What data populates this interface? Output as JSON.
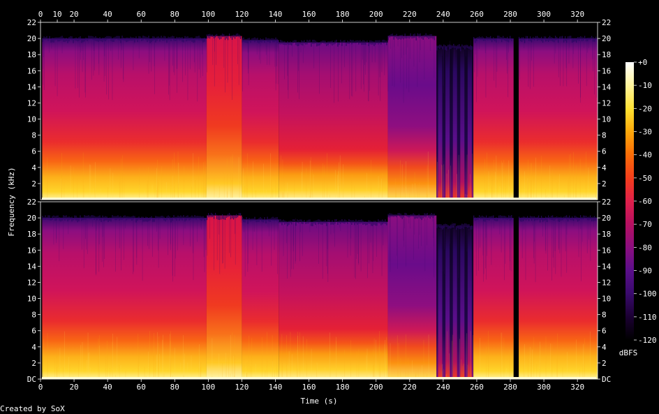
{
  "chart_data": {
    "type": "heatmap",
    "subtype": "spectrogram",
    "channels": 2,
    "xlabel": "Time (s)",
    "ylabel": "Frequency (kHz)",
    "colorbar_label": "dBFS",
    "footer": "Created by SoX",
    "xlim": [
      0,
      332
    ],
    "ylim_khz": [
      0,
      22
    ],
    "x_ticks": [
      "0",
      "20",
      "40",
      "60",
      "80",
      "100",
      "120",
      "140",
      "160",
      "180",
      "200",
      "220",
      "240",
      "260",
      "280",
      "300",
      "320"
    ],
    "x_ticks_top": [
      "0",
      "10",
      "20",
      "40",
      "60",
      "80",
      "100",
      "120",
      "140",
      "160",
      "180",
      "200",
      "220",
      "240",
      "260",
      "280",
      "300",
      "320"
    ],
    "y_ticks_ch1": [
      "22",
      "20",
      "18",
      "16",
      "14",
      "12",
      "10",
      "8",
      "6",
      "4",
      "2"
    ],
    "y_ticks_ch2": [
      "22",
      "20",
      "18",
      "16",
      "14",
      "12",
      "10",
      "8",
      "6",
      "4",
      "2",
      "DC"
    ],
    "colorbar_ticks": [
      "+0",
      "-10",
      "-20",
      "-30",
      "-40",
      "-50",
      "-60",
      "-70",
      "-80",
      "-90",
      "-100",
      "-110",
      "-120"
    ],
    "colorbar_range_db": [
      -120,
      0
    ],
    "segments": [
      {
        "t0": 0,
        "t1": 1,
        "cutoff_khz": 0,
        "level": "silent"
      },
      {
        "t0": 1,
        "t1": 99,
        "cutoff_khz": 20,
        "level": "loud"
      },
      {
        "t0": 99,
        "t1": 120,
        "cutoff_khz": 20.3,
        "level": "very-loud"
      },
      {
        "t0": 120,
        "t1": 142,
        "cutoff_khz": 19.8,
        "level": "loud"
      },
      {
        "t0": 142,
        "t1": 207,
        "cutoff_khz": 19.5,
        "level": "medium"
      },
      {
        "t0": 207,
        "t1": 236,
        "cutoff_khz": 20.3,
        "level": "quiet"
      },
      {
        "t0": 236,
        "t1": 258,
        "cutoff_khz": 19,
        "level": "pulsed"
      },
      {
        "t0": 258,
        "t1": 282,
        "cutoff_khz": 20,
        "level": "loud"
      },
      {
        "t0": 282,
        "t1": 285,
        "cutoff_khz": 0,
        "level": "silent"
      },
      {
        "t0": 285,
        "t1": 332,
        "cutoff_khz": 20,
        "level": "loud"
      }
    ],
    "colors": {
      "background": "#000000",
      "axis": "#ffffff",
      "palette": [
        "#000000",
        "#1a0030",
        "#3a0a6e",
        "#5a0e8a",
        "#8a0e80",
        "#b81060",
        "#e0204a",
        "#f43c1c",
        "#fb6e06",
        "#fda80a",
        "#ffe030",
        "#fff4a0",
        "#ffffff"
      ]
    }
  }
}
